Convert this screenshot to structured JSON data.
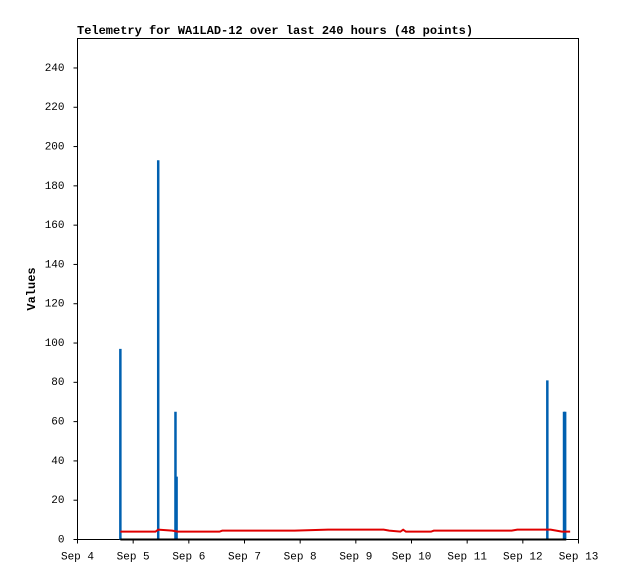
{
  "chart_data": {
    "type": "telemetry",
    "title": "Telemetry for WA1LAD-12 over last 240 hours (48 points)",
    "y_label": "Values",
    "xlim": [
      4,
      13
    ],
    "xticks": [
      {
        "value": 4,
        "label": "Sep 4"
      },
      {
        "value": 5,
        "label": "Sep 5"
      },
      {
        "value": 6,
        "label": "Sep 6"
      },
      {
        "value": 7,
        "label": "Sep 7"
      },
      {
        "value": 8,
        "label": "Sep 8"
      },
      {
        "value": 9,
        "label": "Sep 9"
      },
      {
        "value": 10,
        "label": "Sep 10"
      },
      {
        "value": 11,
        "label": "Sep 11"
      },
      {
        "value": 12,
        "label": "Sep 12"
      },
      {
        "value": 13,
        "label": "Sep 13"
      }
    ],
    "ylim": [
      0,
      255
    ],
    "yticks": [
      0,
      20,
      40,
      60,
      80,
      100,
      120,
      140,
      160,
      180,
      200,
      220,
      240
    ],
    "series": [
      {
        "color": "#0060b0",
        "style": "impulse",
        "x": [
          4.77,
          5.45,
          5.76,
          5.78,
          12.44,
          12.74,
          12.76
        ],
        "values": [
          97,
          193,
          65,
          32,
          81,
          65,
          65
        ]
      },
      {
        "color": "#e00000",
        "style": "line",
        "x": [
          4.77,
          5.4,
          5.45,
          5.7,
          5.8,
          6.55,
          6.6,
          7.9,
          8.5,
          9.5,
          9.6,
          9.8,
          9.85,
          9.9,
          10.35,
          10.4,
          11.8,
          11.9,
          12.5,
          12.7,
          12.85
        ],
        "values": [
          4,
          4,
          5,
          4.5,
          4,
          4,
          4.5,
          4.5,
          5,
          5,
          4.5,
          4,
          5,
          4,
          4,
          4.5,
          4.5,
          5,
          5,
          4,
          4
        ]
      },
      {
        "color": "#000000",
        "style": "line",
        "x": [
          4.77,
          12.78
        ],
        "values": [
          0,
          0
        ]
      }
    ]
  }
}
